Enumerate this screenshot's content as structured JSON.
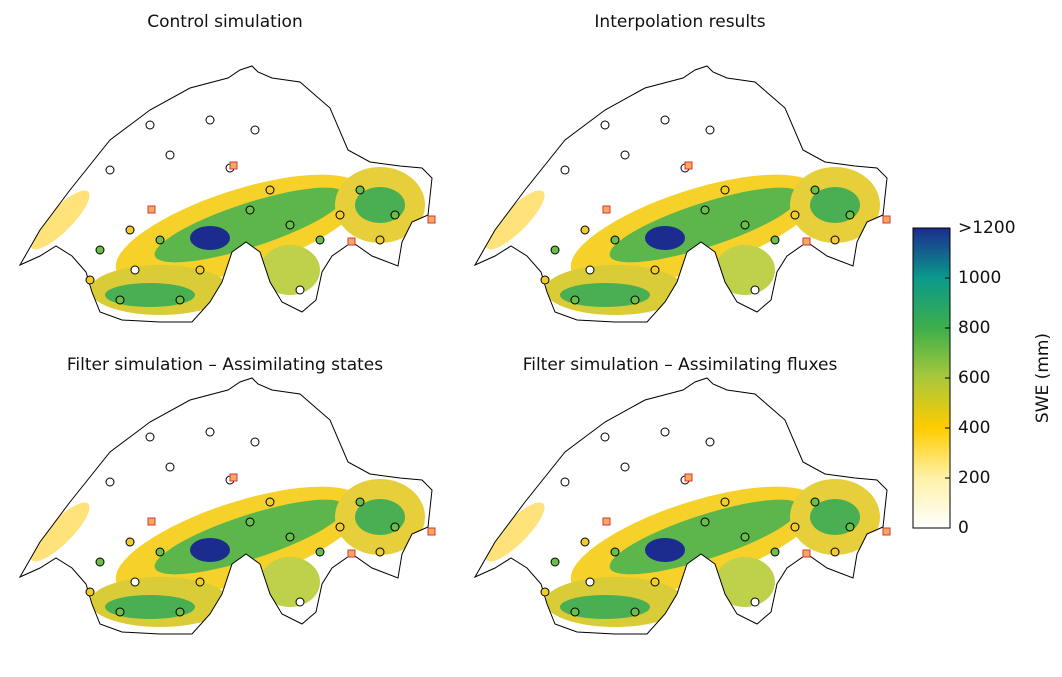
{
  "panels": [
    {
      "title": "Control simulation"
    },
    {
      "title": "Interpolation results"
    },
    {
      "title": "Filter simulation – Assimilating states"
    },
    {
      "title": "Filter simulation – Assimilating fluxes"
    }
  ],
  "colorbar": {
    "label": "SWE (mm)",
    "lim": [
      0,
      1200
    ],
    "ticks": [
      0,
      200,
      400,
      600,
      800,
      1000,
      {
        "value": 1200,
        "label": ">1200"
      }
    ],
    "colors": [
      "#ffffff",
      "#fff1a8",
      "#ffcc00",
      "#a9c83a",
      "#3dae4a",
      "#0a9a8c",
      "#1c2c8e"
    ]
  }
}
